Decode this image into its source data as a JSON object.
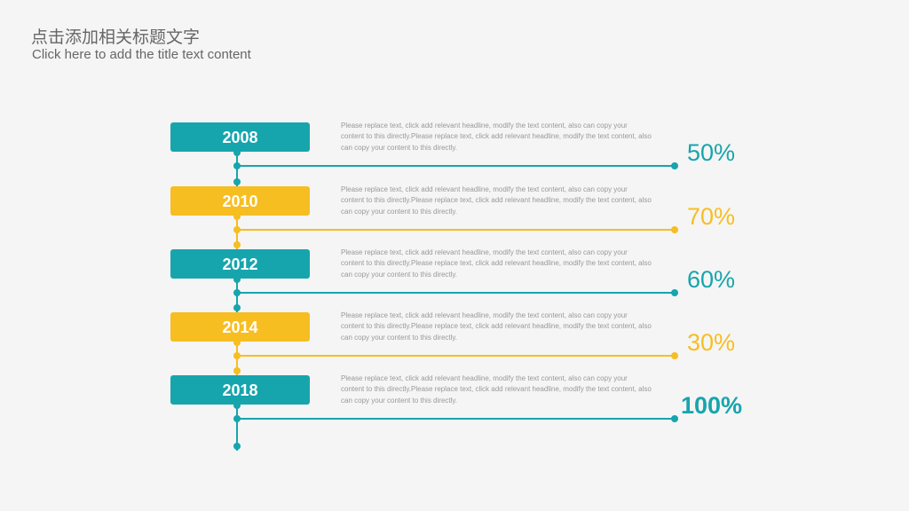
{
  "header": {
    "title": "点击添加相关标题文字",
    "subtitle": "Click here to add the title text content"
  },
  "items": [
    {
      "year": "2008",
      "text": "Please replace text, click add relevant headline, modify the text content, also can copy your content to this directly.Please replace text, click add relevant headline, modify the text content, also can copy your content to this directly.",
      "percent": "50%",
      "color": "#17a5ad"
    },
    {
      "year": "2010",
      "text": "Please replace text, click add relevant headline, modify the text content, also can copy your content to this directly.Please replace text, click add relevant headline, modify the text content, also can copy your content to this directly.",
      "percent": "70%",
      "color": "#f7be22"
    },
    {
      "year": "2012",
      "text": "Please replace text, click add relevant headline, modify the text content, also can copy your content to this directly.Please replace text, click add relevant headline, modify the text content, also can copy your content to this directly.",
      "percent": "60%",
      "color": "#17a5ad"
    },
    {
      "year": "2014",
      "text": "Please replace text, click add relevant headline, modify the text content, also can copy your content to this directly.Please replace text, click add relevant headline, modify the text content, also can copy your content to this directly.",
      "percent": "30%",
      "color": "#f7be22"
    },
    {
      "year": "2018",
      "text": "Please replace text, click add relevant headline, modify the text content, also can copy your content to this directly.Please replace text, click add relevant headline, modify the text content, also can copy your content to this directly.",
      "percent": "100%",
      "color": "#17a5ad"
    }
  ]
}
